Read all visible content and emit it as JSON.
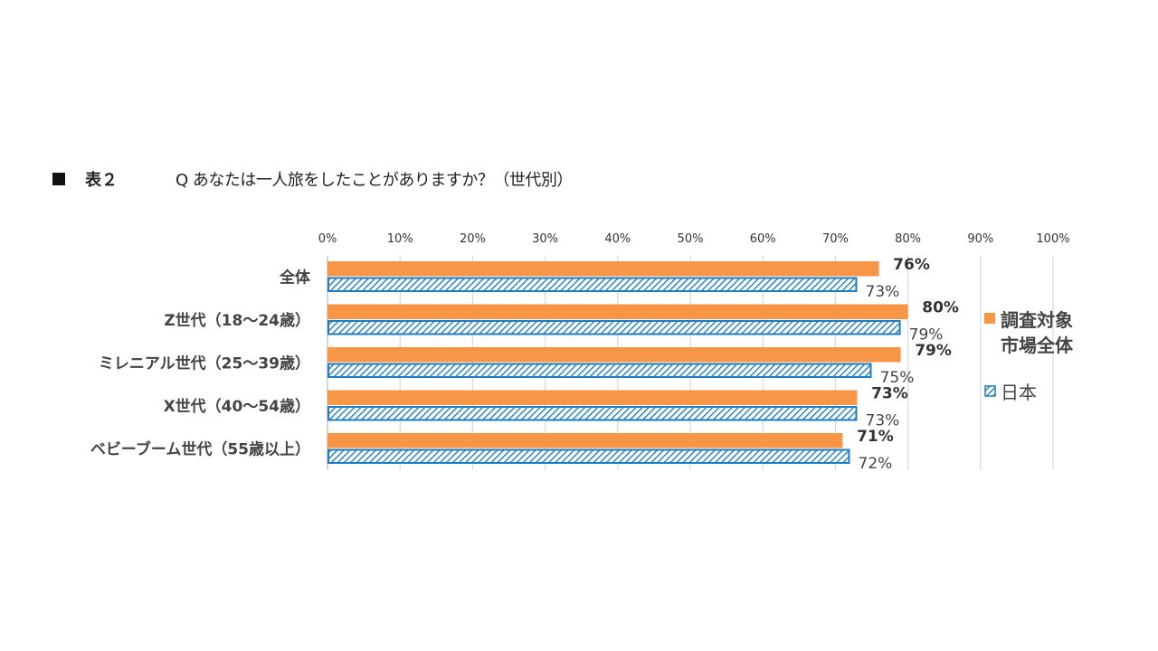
{
  "title": {
    "label": "表２",
    "question": "Q  あなたは一人旅をしたことがありますか？（世代別）"
  },
  "chart_data": {
    "type": "bar",
    "orientation": "horizontal",
    "categories": [
      "全体",
      "Z世代（18〜24歳）",
      "ミレニアル世代（25〜39歳）",
      "X世代（40〜54歳）",
      "ベビーブーム世代（55歳以上）"
    ],
    "series": [
      {
        "name": "調査対象市場全体",
        "legend_lines": [
          "調査対象",
          "市場全体"
        ],
        "color": "#f79646",
        "pattern": "solid",
        "values": [
          76,
          80,
          79,
          73,
          71
        ],
        "labels": [
          "76%",
          "80%",
          "79%",
          "73%",
          "71%"
        ]
      },
      {
        "name": "日本",
        "legend_lines": [
          "日本"
        ],
        "color": "#1f7bc2",
        "pattern": "hatched",
        "values": [
          73,
          79,
          75,
          73,
          72
        ],
        "labels": [
          "73%",
          "79%",
          "75%",
          "73%",
          "72%"
        ]
      }
    ],
    "xlim": [
      0,
      100
    ],
    "ticks": [
      0,
      10,
      20,
      30,
      40,
      50,
      60,
      70,
      80,
      90,
      100
    ],
    "tick_labels": [
      "0%",
      "10%",
      "20%",
      "30%",
      "40%",
      "50%",
      "60%",
      "70%",
      "80%",
      "90%",
      "100%"
    ],
    "grid": true,
    "legend": "right"
  }
}
